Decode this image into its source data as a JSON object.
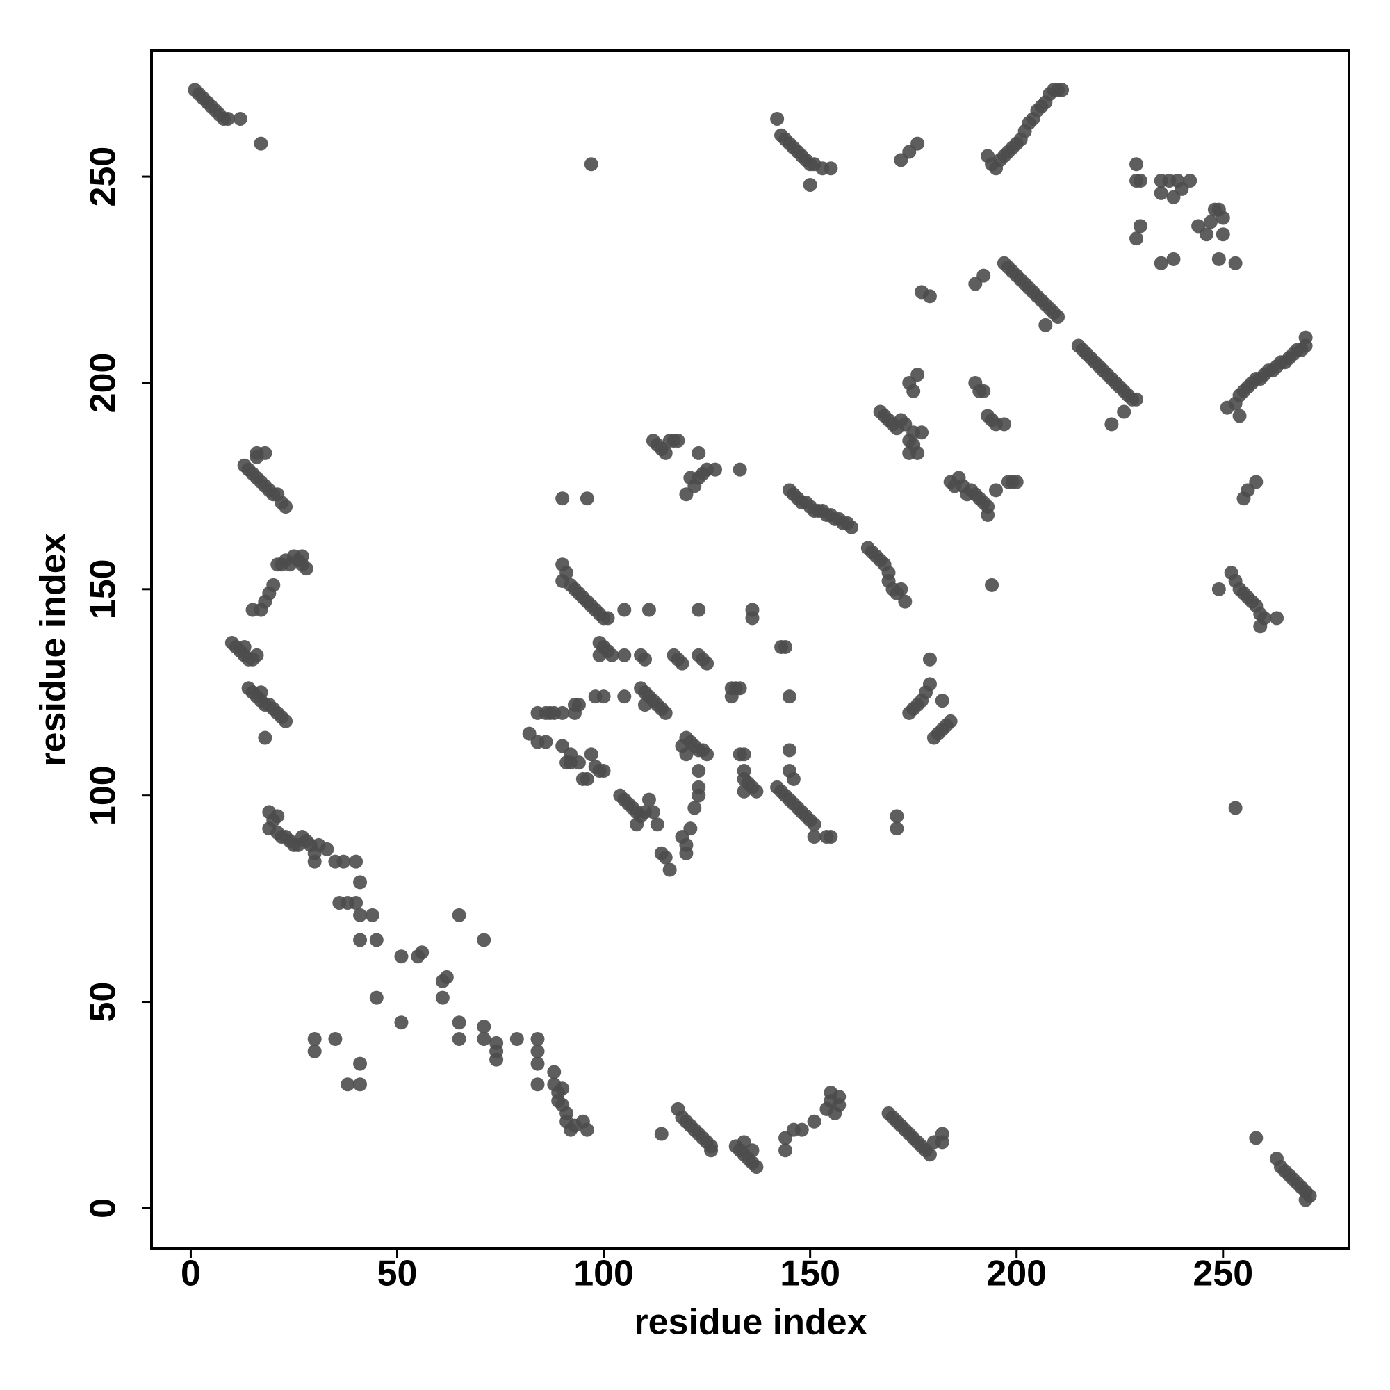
{
  "chart_data": {
    "type": "scatter",
    "x_label": "residue index",
    "y_label": "residue index",
    "xlim": [
      -9.5,
      280.5
    ],
    "ylim": [
      -9.7,
      280.5
    ],
    "xticks": [
      0,
      50,
      100,
      150,
      200,
      250
    ],
    "yticks": [
      0,
      50,
      100,
      150,
      200,
      250
    ],
    "color": "#4d4d4d",
    "x": [
      1,
      2,
      3,
      4,
      5,
      6,
      7,
      8,
      9,
      12,
      17,
      97,
      143,
      142,
      144,
      145,
      146,
      147,
      148,
      149,
      150,
      151,
      153,
      155,
      150,
      172,
      174,
      176,
      193,
      194,
      195,
      196,
      197,
      198,
      199,
      200,
      201,
      202,
      203,
      204,
      205,
      206,
      207,
      208,
      209,
      210,
      211,
      229,
      229,
      230,
      235,
      235,
      237,
      238,
      239,
      240,
      242,
      244,
      246,
      247,
      248,
      249,
      250,
      250,
      249,
      253,
      235,
      238,
      229,
      230,
      179,
      177,
      190,
      192,
      197,
      198,
      199,
      200,
      201,
      202,
      203,
      204,
      205,
      206,
      207,
      208,
      209,
      210,
      207,
      215,
      216,
      217,
      218,
      219,
      220,
      221,
      222,
      223,
      224,
      225,
      226,
      227,
      228,
      229,
      226,
      223,
      251,
      253,
      254,
      255,
      256,
      257,
      258,
      259,
      260,
      261,
      262,
      263,
      264,
      265,
      266,
      267,
      268,
      269,
      270,
      270,
      254,
      255,
      256,
      258,
      252,
      253,
      254,
      255,
      256,
      257,
      258,
      259,
      260,
      263,
      259,
      249,
      194,
      253,
      167,
      168,
      169,
      170,
      171,
      172,
      173,
      174,
      175,
      176,
      175,
      177,
      174,
      175,
      176,
      174,
      190,
      191,
      192,
      193,
      194,
      195,
      197,
      198,
      199,
      200,
      195,
      186,
      187,
      188,
      189,
      190,
      191,
      192,
      193,
      193,
      184,
      185,
      145,
      146,
      147,
      148,
      149,
      150,
      151,
      152,
      153,
      154,
      155,
      156,
      157,
      158,
      159,
      160,
      164,
      165,
      166,
      167,
      168,
      169,
      169,
      170,
      171,
      173,
      172,
      171,
      171,
      175,
      176,
      177,
      178,
      179,
      179,
      174,
      180,
      181,
      182,
      183,
      184,
      182,
      143,
      144,
      145,
      145,
      145,
      142,
      143,
      144,
      145,
      146,
      147,
      148,
      149,
      150,
      151,
      151,
      154,
      155,
      146,
      112,
      113,
      114,
      115,
      116,
      117,
      118,
      123,
      121,
      122,
      123,
      124,
      125,
      127,
      133,
      120,
      96,
      90,
      90,
      90,
      91,
      92,
      93,
      94,
      95,
      96,
      97,
      98,
      99,
      100,
      101,
      105,
      111,
      99,
      100,
      101,
      99,
      102,
      105,
      109,
      110,
      117,
      118,
      119,
      123,
      123,
      124,
      125,
      136,
      136,
      109,
      110,
      111,
      112,
      113,
      114,
      115,
      110,
      105,
      98,
      100,
      93,
      94,
      86,
      87,
      88,
      90,
      93,
      84,
      82,
      84,
      86,
      120,
      121,
      122,
      123,
      124,
      125,
      119,
      120,
      123,
      131,
      132,
      133,
      131,
      90,
      91,
      92,
      94,
      96,
      97,
      98,
      99,
      100,
      95,
      92,
      104,
      105,
      106,
      107,
      108,
      109,
      110,
      111,
      112,
      113,
      108,
      114,
      115,
      116,
      119,
      120,
      120,
      121,
      122,
      123,
      123,
      133,
      134,
      134,
      134,
      135,
      136,
      137,
      134,
      13,
      14,
      15,
      16,
      17,
      18,
      19,
      20,
      21,
      22,
      23,
      16,
      18,
      16,
      15,
      17,
      18,
      19,
      20,
      21,
      22,
      23,
      24,
      25,
      26,
      27,
      28,
      27,
      10,
      11,
      12,
      13,
      14,
      15,
      16,
      13,
      14,
      15,
      16,
      17,
      18,
      19,
      20,
      21,
      22,
      23,
      18,
      17,
      19,
      20,
      21,
      19,
      21,
      22,
      23,
      24,
      25,
      26,
      27,
      28,
      29,
      30,
      30,
      31,
      33,
      35,
      37,
      40,
      36,
      38,
      40,
      41,
      41,
      44,
      41,
      45,
      45,
      51,
      51,
      55,
      56,
      61,
      62,
      61,
      65,
      65,
      65,
      71,
      71,
      71,
      74,
      74,
      74,
      79,
      84,
      84,
      84,
      84,
      30,
      30,
      35,
      38,
      41,
      41,
      88,
      88,
      89,
      89,
      90,
      90,
      91,
      91,
      92,
      93,
      95,
      96,
      118,
      119,
      120,
      121,
      122,
      123,
      124,
      125,
      126,
      126,
      114,
      132,
      133,
      134,
      135,
      136,
      136,
      137,
      134,
      144,
      144,
      146,
      148,
      151,
      154,
      155,
      155,
      156,
      157,
      157,
      169,
      170,
      171,
      172,
      173,
      174,
      175,
      176,
      177,
      178,
      179,
      180,
      182,
      182,
      258,
      263,
      264,
      265,
      266,
      267,
      268,
      269,
      270,
      270,
      271
    ],
    "y": [
      271,
      270,
      269,
      268,
      267,
      266,
      265,
      264,
      264,
      264,
      258,
      253,
      260,
      264,
      259,
      258,
      257,
      256,
      255,
      254,
      253,
      253,
      252,
      252,
      248,
      254,
      256,
      258,
      255,
      253,
      252,
      254,
      255,
      256,
      257,
      258,
      259,
      261,
      263,
      264,
      266,
      267,
      268,
      270,
      271,
      271,
      271,
      253,
      249,
      249,
      249,
      246,
      249,
      245,
      249,
      247,
      249,
      238,
      236,
      239,
      242,
      242,
      240,
      236,
      230,
      229,
      229,
      230,
      235,
      238,
      221,
      222,
      224,
      226,
      229,
      228,
      227,
      226,
      225,
      224,
      223,
      222,
      221,
      220,
      219,
      218,
      217,
      216,
      214,
      209,
      208,
      207,
      206,
      205,
      204,
      203,
      202,
      201,
      200,
      199,
      198,
      197,
      196,
      196,
      193,
      190,
      194,
      195,
      197,
      198,
      199,
      200,
      201,
      201,
      202,
      203,
      203,
      204,
      205,
      205,
      206,
      207,
      208,
      208,
      209,
      211,
      192,
      172,
      174,
      176,
      154,
      152,
      150,
      149,
      148,
      147,
      146,
      144,
      143,
      143,
      141,
      150,
      151,
      97,
      193,
      192,
      191,
      190,
      189,
      191,
      190,
      186,
      185,
      183,
      188,
      188,
      200,
      198,
      202,
      183,
      200,
      198,
      198,
      192,
      191,
      190,
      190,
      176,
      176,
      176,
      174,
      177,
      175,
      173,
      174,
      173,
      172,
      171,
      170,
      168,
      176,
      175,
      174,
      173,
      172,
      171,
      171,
      170,
      169,
      169,
      169,
      168,
      168,
      167,
      167,
      166,
      166,
      165,
      160,
      159,
      158,
      157,
      156,
      154,
      152,
      150,
      149,
      147,
      150,
      95,
      92,
      121,
      122,
      123,
      125,
      127,
      133,
      120,
      114,
      115,
      116,
      117,
      118,
      123,
      136,
      136,
      124,
      111,
      106,
      102,
      101,
      100,
      99,
      98,
      97,
      96,
      95,
      94,
      93,
      90,
      90,
      90,
      104,
      186,
      185,
      184,
      183,
      186,
      186,
      186,
      183,
      177,
      175,
      177,
      178,
      179,
      179,
      179,
      173,
      172,
      172,
      156,
      152,
      154,
      151,
      150,
      149,
      148,
      147,
      146,
      145,
      144,
      143,
      143,
      145,
      145,
      137,
      136,
      135,
      134,
      134,
      134,
      134,
      133,
      134,
      133,
      132,
      145,
      134,
      133,
      132,
      145,
      143,
      126,
      125,
      124,
      123,
      122,
      121,
      120,
      122,
      124,
      124,
      124,
      122,
      122,
      120,
      120,
      120,
      120,
      120,
      120,
      115,
      113,
      113,
      114,
      113,
      112,
      111,
      111,
      110,
      112,
      110,
      106,
      126,
      126,
      126,
      124,
      112,
      108,
      110,
      108,
      104,
      110,
      107,
      106,
      106,
      104,
      108,
      100,
      99,
      98,
      97,
      96,
      95,
      96,
      99,
      96,
      93,
      93,
      86,
      85,
      82,
      90,
      88,
      86,
      92,
      97,
      100,
      102,
      110,
      110,
      106,
      104,
      103,
      102,
      101,
      101,
      180,
      179,
      178,
      177,
      176,
      175,
      174,
      173,
      173,
      171,
      170,
      183,
      183,
      182,
      145,
      145,
      147,
      149,
      151,
      156,
      156,
      157,
      156,
      158,
      157,
      156,
      155,
      158,
      137,
      136,
      135,
      134,
      133,
      133,
      134,
      136,
      126,
      125,
      124,
      123,
      122,
      122,
      121,
      120,
      119,
      118,
      114,
      125,
      96,
      94,
      95,
      92,
      91,
      90,
      90,
      89,
      88,
      88,
      90,
      89,
      88,
      86,
      84,
      88,
      87,
      84,
      84,
      84,
      74,
      74,
      74,
      71,
      79,
      71,
      65,
      65,
      51,
      61,
      45,
      61,
      62,
      55,
      56,
      51,
      71,
      45,
      41,
      65,
      44,
      41,
      40,
      38,
      36,
      41,
      41,
      38,
      35,
      30,
      41,
      38,
      41,
      30,
      30,
      35,
      33,
      30,
      28,
      26,
      29,
      25,
      23,
      21,
      19,
      20,
      21,
      19,
      24,
      22,
      21,
      20,
      19,
      18,
      17,
      16,
      15,
      14,
      18,
      15,
      14,
      13,
      12,
      11,
      14,
      10,
      16,
      14,
      17,
      19,
      19,
      21,
      24,
      26,
      28,
      23,
      25,
      27,
      23,
      22,
      21,
      20,
      19,
      18,
      17,
      16,
      15,
      14,
      13,
      16,
      16,
      18,
      17,
      12,
      10,
      9,
      8,
      7,
      6,
      5,
      4,
      2,
      3
    ]
  }
}
